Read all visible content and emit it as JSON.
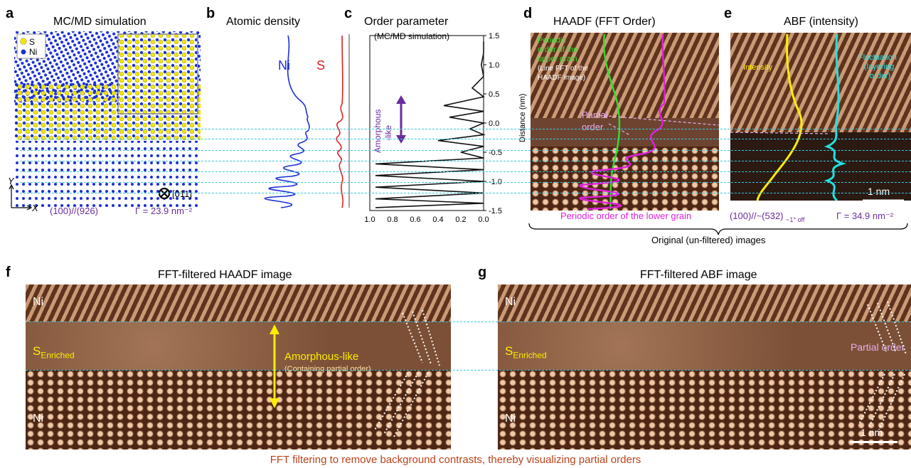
{
  "panel_a": {
    "label": "a",
    "title": "MC/MD simulation",
    "legend_s": "S",
    "legend_ni": "Ni",
    "axis_y": "Y",
    "axis_x": "X",
    "zone_axis": "[011]",
    "orientation": "(100)//(926)",
    "gamma": "Γ = 23.9 nm⁻²",
    "colors": {
      "ni": "#1a2fd6",
      "s": "#f2e600"
    }
  },
  "panel_b": {
    "label": "b",
    "title": "Atomic density",
    "ni_label": "Ni",
    "s_label": "S"
  },
  "panel_c": {
    "label": "c",
    "title": "Order parameter",
    "subtitle": "(MC/MD simulation)",
    "annotation": "Amorphous",
    "annotation2": "-like",
    "x_ticks": [
      "1.0",
      "0.8",
      "0.6",
      "0.4",
      "0.2",
      "0.0"
    ],
    "y_ticks": [
      "1.5",
      "1.0",
      "0.5",
      "0.0",
      "-0.5",
      "-1.0",
      "-1.5"
    ],
    "y_axis_label": "Distance (nm)"
  },
  "panel_d": {
    "label": "d",
    "title": "HAADF (FFT Order)",
    "green_note_1": "Periodic",
    "green_note_2": "order of the",
    "green_note_3": "upper grain",
    "white_note_1": "(Line FFT of the",
    "white_note_2": "HAADF image)",
    "partial_1": "Partial",
    "partial_2": "order",
    "lower_caption": "Periodic order of the lower grain"
  },
  "panel_e": {
    "label": "e",
    "title": "ABF (intensity)",
    "intensity": "Intensity",
    "fluct_1": "Fluctuation",
    "fluct_2": "(layering",
    "fluct_3": "order)",
    "scalebar": "1 nm",
    "orientation": "(100)//~(532)",
    "orientation_sub": "~1° off",
    "gamma": "Γ = 34.9 nm⁻²"
  },
  "brace_caption": "Original (un-filtered) images",
  "panel_f": {
    "label": "f",
    "title": "FFT-filtered HAADF image",
    "ni_top": "Ni",
    "s_enriched": "S",
    "s_sub": "Enriched",
    "ni_bottom": "Ni",
    "amorphous": "Amorphous-like",
    "containing": "(Containing partial order)"
  },
  "panel_g": {
    "label": "g",
    "title": "FFT-filtered ABF image",
    "ni_top": "Ni",
    "s_enriched": "S",
    "s_sub": "Enriched",
    "ni_bottom": "Ni",
    "partial": "Partial order",
    "scalebar": "1 nm"
  },
  "footer": "FFT filtering to remove background contrasts, thereby visualizing partial orders",
  "chart_data": [
    {
      "type": "line",
      "title": "Order parameter",
      "subtitle": "(MC/MD simulation)",
      "ylabel": "Distance (nm)",
      "xlim": [
        1.0,
        0.0
      ],
      "ylim": [
        -1.5,
        1.5
      ],
      "series": [
        {
          "y": [
            1.4,
            1.0,
            0.6,
            0.3,
            0.1,
            -0.1,
            -0.3,
            -0.5,
            -0.7,
            -0.9,
            -1.1,
            -1.3,
            -1.45
          ],
          "x": [
            0.0,
            0.02,
            0.1,
            0.35,
            0.3,
            0.12,
            0.4,
            0.2,
            0.95,
            0.95,
            0.95,
            0.95,
            0.95
          ]
        }
      ]
    }
  ]
}
